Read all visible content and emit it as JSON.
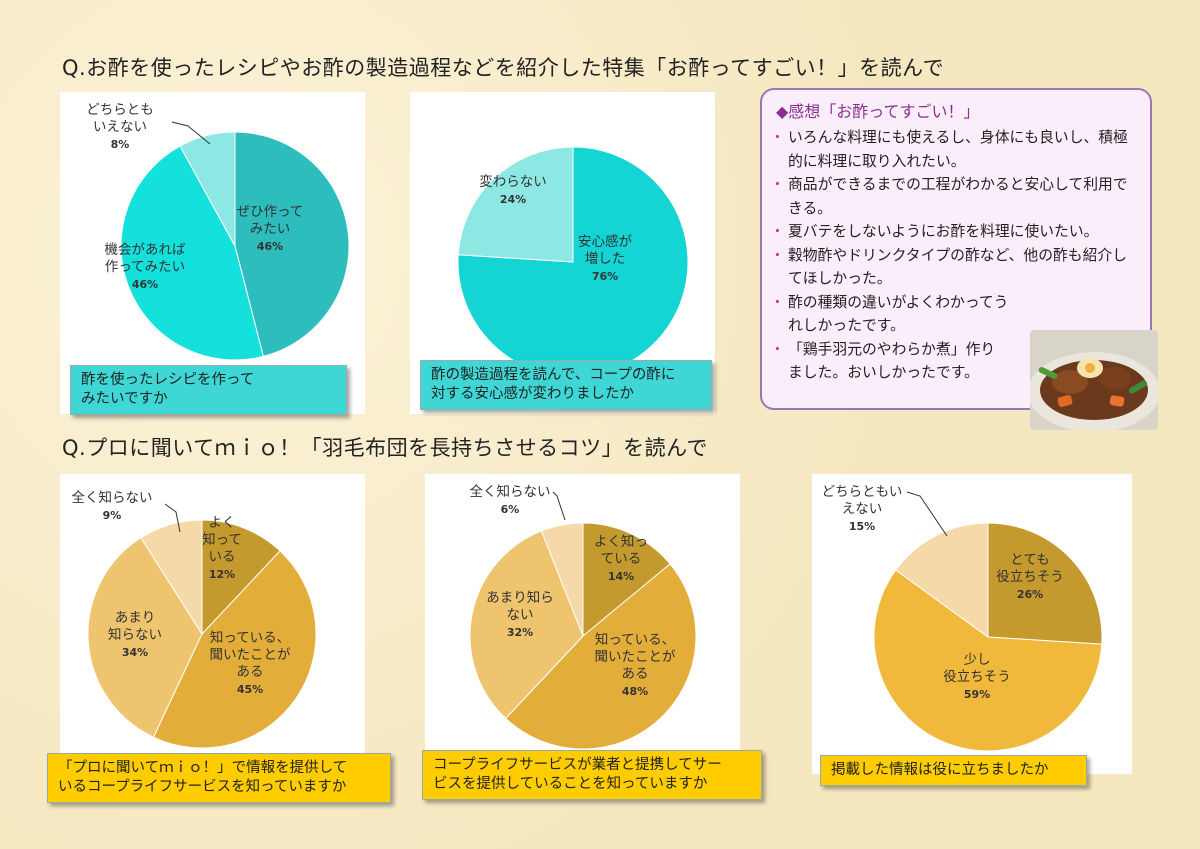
{
  "headings": {
    "q1": "Q.お酢を使ったレシピやお酢の製造過程などを紹介した特集「お酢ってすごい！」を読んで",
    "q2": "Q.プロに聞いてｍｉｏ！「羽毛布団を長持ちさせるコツ」を読んで"
  },
  "comments": {
    "title": "◆感想「お酢ってすごい！」",
    "items": [
      "いろんな料理にも使えるし、身体にも良いし、積極的に料理に取り入れたい。",
      "商品ができるまでの工程がわかると安心して利用できる。",
      "夏バテをしないようにお酢を料理に使いたい。",
      "穀物酢やドリンクタイプの酢など、他の酢も紹介してほしかった。",
      "酢の種類の違いがよくわかってうれしかったです。",
      "「鶏手羽元のやわらか煮」作りました。おいしかったです。"
    ]
  },
  "colors": {
    "teal_dark": "#2dbdbd",
    "teal_mid": "#14e0dc",
    "teal_light": "#8de8e3",
    "gold_dark": "#c49a2e",
    "gold_mid": "#e3ad3a",
    "gold_light": "#efc46e",
    "gold_pale": "#f6d9a8",
    "gold_yellow": "#f0b93c"
  },
  "chart_data": [
    {
      "type": "pie",
      "caption": [
        "酢を使ったレシピを作って",
        "みたいですか"
      ],
      "slices": [
        {
          "label": [
            "ぜひ作って",
            "みたい"
          ],
          "value": 46,
          "pct": "46%",
          "color": "#2dbdbd"
        },
        {
          "label": [
            "機会があれば",
            "作ってみたい"
          ],
          "value": 46,
          "pct": "46%",
          "color": "#14e0dc"
        },
        {
          "label": [
            "どちらとも",
            "いえない"
          ],
          "value": 8,
          "pct": "8%",
          "color": "#8de8e3"
        }
      ]
    },
    {
      "type": "pie",
      "caption": [
        "酢の製造過程を読んで、コープの酢に",
        "対する安心感が変わりましたか"
      ],
      "slices": [
        {
          "label": [
            "安心感が",
            "増した"
          ],
          "value": 76,
          "pct": "76%",
          "color": "#14d4d4"
        },
        {
          "label": [
            "変わらない"
          ],
          "value": 24,
          "pct": "24%",
          "color": "#8de8e3"
        }
      ]
    },
    {
      "type": "pie",
      "caption": [
        "「プロに聞いてｍｉｏ！」で情報を提供して",
        "いるコープライフサービスを知っていますか"
      ],
      "slices": [
        {
          "label": [
            "よく",
            "知って",
            "いる"
          ],
          "value": 12,
          "pct": "12%",
          "color": "#c49a2e"
        },
        {
          "label": [
            "知っている、",
            "聞いたことが",
            "ある"
          ],
          "value": 45,
          "pct": "45%",
          "color": "#e3ad3a"
        },
        {
          "label": [
            "あまり",
            "知らない"
          ],
          "value": 34,
          "pct": "34%",
          "color": "#efc46e"
        },
        {
          "label": [
            "全く知らない"
          ],
          "value": 9,
          "pct": "9%",
          "color": "#f6d9a8"
        }
      ]
    },
    {
      "type": "pie",
      "caption": [
        "コープライフサービスが業者と提携してサー",
        "ビスを提供していることを知っていますか"
      ],
      "slices": [
        {
          "label": [
            "よく知っ",
            "ている"
          ],
          "value": 14,
          "pct": "14%",
          "color": "#c49a2e"
        },
        {
          "label": [
            "知っている、",
            "聞いたことが",
            "ある"
          ],
          "value": 48,
          "pct": "48%",
          "color": "#e3ad3a"
        },
        {
          "label": [
            "あまり知ら",
            "ない"
          ],
          "value": 32,
          "pct": "32%",
          "color": "#efc46e"
        },
        {
          "label": [
            "全く知らない"
          ],
          "value": 6,
          "pct": "6%",
          "color": "#f6d9a8"
        }
      ]
    },
    {
      "type": "pie",
      "caption": [
        "掲載した情報は役に立ちましたか"
      ],
      "slices": [
        {
          "label": [
            "とても",
            "役立ちそう"
          ],
          "value": 26,
          "pct": "26%",
          "color": "#c49a2e"
        },
        {
          "label": [
            "少し",
            "役立ちそう"
          ],
          "value": 59,
          "pct": "59%",
          "color": "#f0b93c"
        },
        {
          "label": [
            "どちらともい",
            "えない"
          ],
          "value": 15,
          "pct": "15%",
          "color": "#f6d9a8"
        }
      ]
    }
  ]
}
